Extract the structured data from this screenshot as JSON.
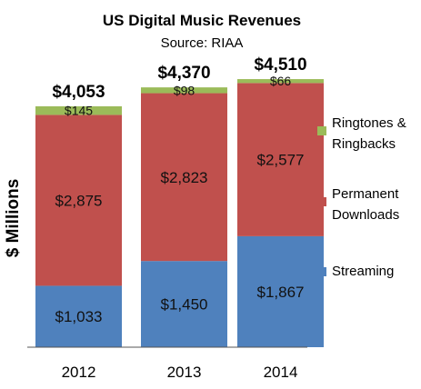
{
  "chart_data": {
    "type": "bar",
    "stacked": true,
    "title": "US Digital Music Revenues",
    "subtitle": "Source: RIAA",
    "ylabel": "$ Millions",
    "xlabel": "",
    "categories": [
      "2012",
      "2013",
      "2014"
    ],
    "ylim": [
      0,
      4700
    ],
    "grid": false,
    "legend_position": "right",
    "series": [
      {
        "name": "Streaming",
        "color": "#4f81bd",
        "values": [
          1033,
          1450,
          1867
        ],
        "labels": [
          "$1,033",
          "$1,450",
          "$1,867"
        ]
      },
      {
        "name": "Permanent Downloads",
        "color": "#c0504d",
        "values": [
          2875,
          2823,
          2577
        ],
        "labels": [
          "$2,875",
          "$2,823",
          "$2,577"
        ]
      },
      {
        "name": "Ringtones & Ringbacks",
        "color": "#9bbb59",
        "values": [
          145,
          98,
          66
        ],
        "labels": [
          "$145",
          "$98",
          "$66"
        ]
      }
    ],
    "totals": [
      4053,
      4370,
      4510
    ],
    "total_labels": [
      "$4,053",
      "$4,370",
      "$4,510"
    ],
    "legend": [
      {
        "lines": [
          "Ringtones &",
          "Ringbacks"
        ],
        "color": "#9bbb59"
      },
      {
        "lines": [
          "Permanent",
          "Downloads"
        ],
        "color": "#c0504d"
      },
      {
        "lines": [
          "Streaming"
        ],
        "color": "#4f81bd"
      }
    ]
  }
}
